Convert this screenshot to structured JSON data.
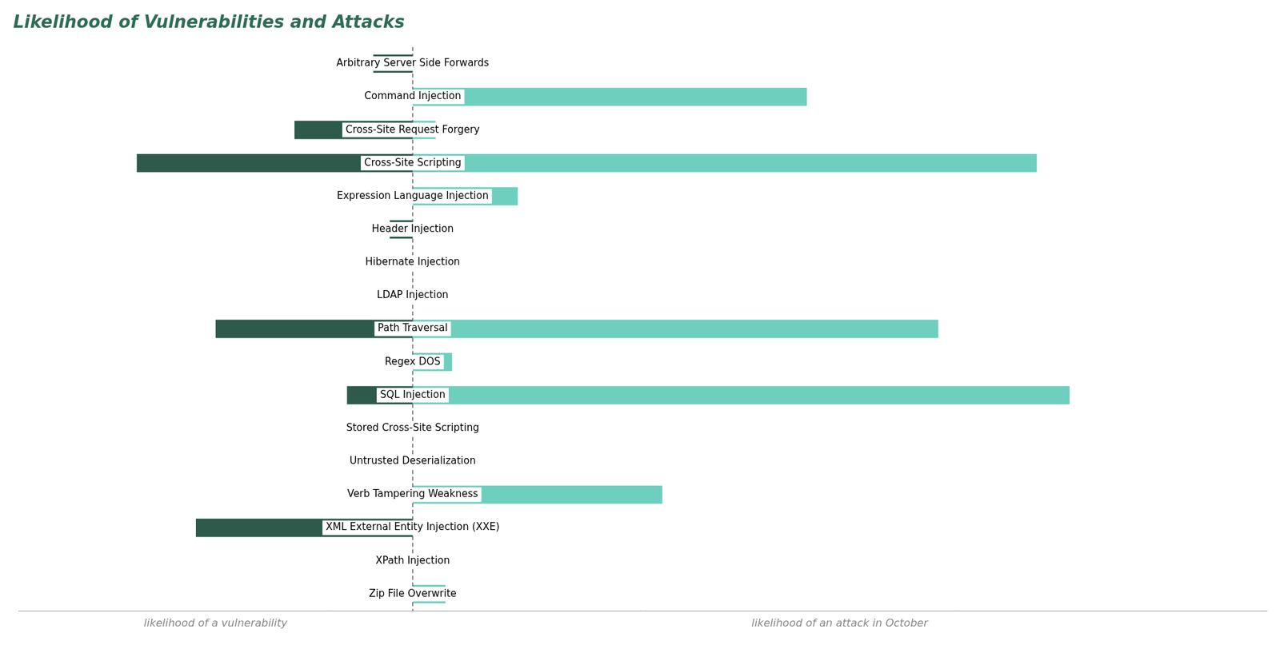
{
  "chart_data": {
    "type": "bar",
    "orientation": "horizontal",
    "title": "Likelihood of Vulnerabilities and Attacks",
    "categories": [
      "Arbitrary Server Side Forwards",
      "Command Injection",
      "Cross-Site Request Forgery",
      "Cross-Site Scripting",
      "Expression Language Injection",
      "Header Injection",
      "Hibernate Injection",
      "LDAP Injection",
      "Path Traversal",
      "Regex DOS",
      "SQL Injection",
      "Stored Cross-Site Scripting",
      "Untrusted Deserialization",
      "Verb Tampering Weakness",
      "XML External Entity Injection (XXE)",
      "XPath Injection",
      "Zip File Overwrite"
    ],
    "series": [
      {
        "color": "#2d5a4a",
        "values": [
          -0.6,
          0,
          -1.8,
          -4.2,
          0,
          -0.35,
          0,
          0,
          -3.0,
          0,
          -1.0,
          0,
          0,
          0,
          -3.3,
          0,
          0
        ]
      },
      {
        "color": "#6ecfbe",
        "values": [
          0.0,
          6.0,
          0.35,
          9.5,
          1.6,
          0.0,
          0.0,
          0.0,
          8.0,
          0.6,
          10.0,
          0.0,
          0.0,
          3.8,
          0.0,
          0.0,
          0.5
        ]
      }
    ],
    "annotations": [
      "likelihood of a vulnerability",
      "likelihood of an attack in October"
    ],
    "xlim": [
      -6.0,
      13.0
    ],
    "grid": false,
    "tick_labels": false
  }
}
